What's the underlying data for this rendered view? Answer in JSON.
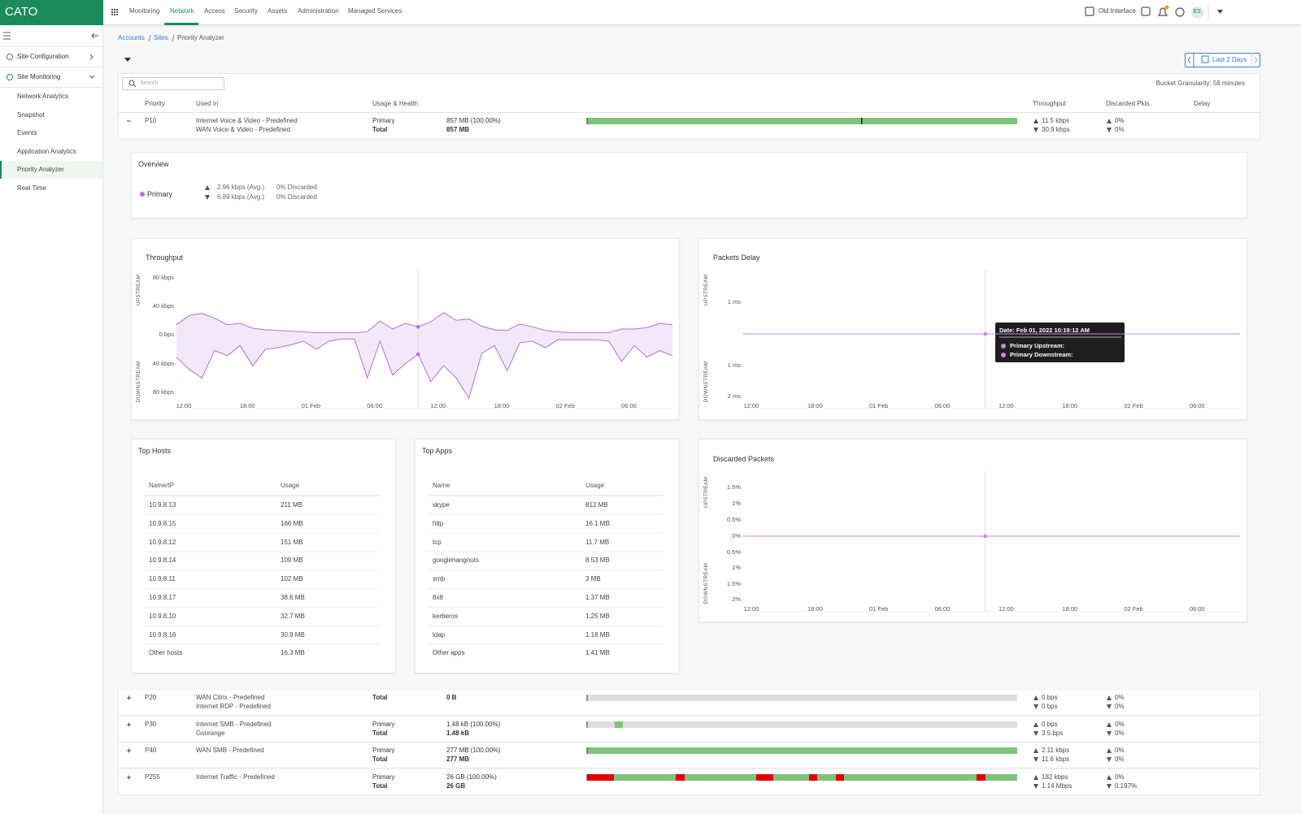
{
  "top_nav": {
    "logo": "CATO",
    "items": [
      "Monitoring",
      "Network",
      "Access",
      "Security",
      "Assets",
      "Administration",
      "Managed Services"
    ],
    "active_item": 1,
    "old_interface": "Old Interface",
    "avatar": "ES"
  },
  "sidebar": {
    "sections": [
      {
        "label": "Site Configuration"
      },
      {
        "label": "Site Monitoring",
        "items": [
          "Network Analytics",
          "Snapshot",
          "Events",
          "Application Analytics",
          "Priority Analyzer",
          "Real Time"
        ]
      }
    ],
    "active_item": 4
  },
  "breadcrumb": [
    "Accounts",
    "Sites",
    "Priority Analyzer"
  ],
  "date_range": "Last 2 Days",
  "search_placeholder": "Search",
  "bucket_granularity": "Bucket Granularity: 58 minutes",
  "table": {
    "columns": [
      "Priority",
      "Used In",
      "Usage & Health",
      "Throughput",
      "Discarded Pkts",
      "Delay"
    ],
    "rows": [
      {
        "priority": "P10",
        "expanded": true,
        "used_in": [
          "Internet Voice & Video - Predefined",
          "WAN Voice & Video - Predefined"
        ],
        "usage": [
          {
            "label": "Primary",
            "value": "857 MB (100.00%)"
          },
          {
            "label": "Total",
            "value": "857 MB"
          }
        ],
        "throughput": [
          "11.5 kbps",
          "30.9 kbps"
        ],
        "discarded": [
          "0%",
          "0%"
        ]
      },
      {
        "priority": "P20",
        "expanded": false,
        "used_in": [
          "WAN Citrix - Predefined",
          "Internet RDP - Predefined"
        ],
        "usage": [
          {
            "label": "Total",
            "value": "0 B"
          }
        ],
        "throughput": [
          "0 bps",
          "0 bps"
        ],
        "discarded": [
          "0%",
          "0%"
        ]
      },
      {
        "priority": "P30",
        "expanded": false,
        "used_in": [
          "Internet SMB - Predefined",
          "Goorange"
        ],
        "usage": [
          {
            "label": "Primary",
            "value": "1.48 kB (100.00%)"
          },
          {
            "label": "Total",
            "value": "1.48 kB"
          }
        ],
        "throughput": [
          "0 bps",
          "3.5 bps"
        ],
        "discarded": [
          "0%",
          "0%"
        ]
      },
      {
        "priority": "P40",
        "expanded": false,
        "used_in": [
          "WAN SMB - Predefined"
        ],
        "usage": [
          {
            "label": "Primary",
            "value": "277 MB (100.00%)"
          },
          {
            "label": "Total",
            "value": "277 MB"
          }
        ],
        "throughput": [
          "2.11 kbps",
          "11.6 kbps"
        ],
        "discarded": [
          "0%",
          "0%"
        ]
      },
      {
        "priority": "P255",
        "expanded": false,
        "used_in": [
          "Internet Traffic - Predefined"
        ],
        "usage": [
          {
            "label": "Primary",
            "value": "26 GB (100.00%)"
          },
          {
            "label": "Total",
            "value": "26 GB"
          }
        ],
        "throughput": [
          "182 kbps",
          "1.14 Mbps"
        ],
        "discarded": [
          "0%",
          "0.197%"
        ]
      }
    ]
  },
  "overview": {
    "title": "Overview",
    "name": "Primary",
    "up": "2.96 kbps (Avg.)",
    "up_discarded": "0% Discarded",
    "down": "6.89 kbps (Avg.)",
    "down_discarded": "0% Discarded"
  },
  "throughput_chart": {
    "type": "area",
    "title": "Throughput",
    "upstream_label": "UPSTREAM",
    "downstream_label": "DOWNSTREAM",
    "x_labels": [
      "12:00",
      "18:00",
      "01 Feb",
      "06:00",
      "12:00",
      "18:00",
      "02 Feb",
      "06:00"
    ],
    "ylim_upstream": [
      0,
      90
    ],
    "ylim_downstream": [
      0,
      90
    ],
    "yticks_upstream": [
      {
        "value": 80,
        "label": "80 kbps"
      },
      {
        "value": 40,
        "label": "40 kbps"
      },
      {
        "value": 0,
        "label": "0 bps"
      }
    ],
    "yticks_downstream": [
      {
        "value": 40,
        "label": "40 kbps"
      },
      {
        "value": 80,
        "label": "80 kbps"
      }
    ],
    "series": [
      {
        "name": "Primary",
        "color": "#b66fd8",
        "upstream": [
          14,
          27,
          30,
          23,
          14,
          16,
          9,
          7,
          6,
          5,
          4,
          3,
          3,
          3,
          3,
          4,
          19,
          8,
          16,
          11,
          18,
          31,
          20,
          22,
          12,
          7,
          6,
          15,
          11,
          6,
          4,
          3,
          3,
          3,
          3,
          8,
          8,
          10,
          16,
          14
        ],
        "downstream": [
          31,
          48,
          60,
          22,
          29,
          15,
          43,
          20,
          18,
          14,
          9,
          20,
          9,
          6,
          6,
          60,
          9,
          56,
          40,
          27,
          65,
          43,
          60,
          88,
          26,
          15,
          50,
          11,
          9,
          18,
          7,
          7,
          7,
          7,
          9,
          37,
          15,
          31,
          22,
          29
        ]
      }
    ]
  },
  "packets_delay_chart": {
    "type": "line",
    "title": "Packets Delay",
    "upstream_label": "UPSTREAM",
    "downstream_label": "DOWNSTREAM",
    "x_labels": [
      "12:00",
      "18:00",
      "01 Feb",
      "06:00",
      "12:00",
      "18:00",
      "02 Feb",
      "06:00"
    ],
    "ylim_upstream": [
      0,
      2
    ],
    "ylim_downstream": [
      0,
      2.1
    ],
    "yticks_upstream": [
      {
        "value": 1,
        "label": "1 ms"
      }
    ],
    "yticks_downstream": [
      {
        "value": 1,
        "label": "1 ms"
      },
      {
        "value": 2,
        "label": "2 ms"
      }
    ],
    "series": [
      {
        "name": "Primary",
        "color": "#c98be0",
        "upstream": [
          0,
          0,
          0,
          0,
          0,
          0,
          0,
          0,
          0,
          0,
          0,
          0,
          0,
          0,
          0,
          0,
          0,
          0,
          0,
          0,
          0,
          0,
          0,
          0,
          0,
          0,
          0,
          0,
          0,
          0,
          0,
          0,
          0,
          0,
          0,
          0,
          0,
          0,
          0,
          0
        ],
        "downstream": [
          0,
          0,
          0,
          0,
          0,
          0,
          0,
          0,
          0,
          0,
          0,
          0,
          0,
          0,
          0,
          0,
          0,
          0,
          0,
          0,
          0,
          0,
          0,
          0,
          0,
          0,
          0,
          0,
          0,
          0,
          0,
          0,
          0,
          0,
          0,
          0,
          0,
          0,
          0,
          0
        ]
      }
    ],
    "tooltip": {
      "date": "Date: Feb 01, 2022 10:19:12 AM",
      "lines": [
        "Primary Upstream:",
        "Primary Downstream:"
      ]
    }
  },
  "discarded_chart": {
    "type": "line",
    "title": "Discarded Packets",
    "upstream_label": "UPSTREAM",
    "downstream_label": "DOWNSTREAM",
    "x_labels": [
      "12:00",
      "18:00",
      "01 Feb",
      "06:00",
      "12:00",
      "18:00",
      "02 Feb",
      "06:00"
    ],
    "ylim_upstream": [
      0,
      2
    ],
    "ylim_downstream": [
      0,
      2.1
    ],
    "yticks_upstream": [
      {
        "value": 1.5,
        "label": "1.5%"
      },
      {
        "value": 1,
        "label": "1%"
      },
      {
        "value": 0.5,
        "label": "0.5%"
      },
      {
        "value": 0,
        "label": "0%"
      }
    ],
    "yticks_downstream": [
      {
        "value": 0.5,
        "label": "0.5%"
      },
      {
        "value": 1,
        "label": "1%"
      },
      {
        "value": 1.5,
        "label": "1.5%"
      },
      {
        "value": 2,
        "label": "2%"
      }
    ],
    "series": [
      {
        "name": "Primary",
        "color": "#c98be0",
        "upstream": [
          0,
          0,
          0,
          0,
          0,
          0,
          0,
          0,
          0,
          0,
          0,
          0,
          0,
          0,
          0,
          0,
          0,
          0,
          0,
          0,
          0,
          0,
          0,
          0,
          0,
          0,
          0,
          0,
          0,
          0,
          0,
          0,
          0,
          0,
          0,
          0,
          0,
          0,
          0,
          0
        ],
        "downstream": [
          0,
          0,
          0,
          0,
          0,
          0,
          0,
          0,
          0,
          0,
          0,
          0,
          0,
          0,
          0,
          0,
          0,
          0,
          0,
          0,
          0,
          0,
          0,
          0,
          0,
          0,
          0,
          0,
          0,
          0,
          0,
          0,
          0,
          0,
          0,
          0,
          0,
          0,
          0,
          0
        ]
      }
    ]
  },
  "top_hosts": {
    "title": "Top Hosts",
    "columns": [
      "Name/IP",
      "Usage"
    ],
    "rows": [
      [
        "10.9.8.13",
        "211 MB"
      ],
      [
        "10.9.8.15",
        "166 MB"
      ],
      [
        "10.9.8.12",
        "151 MB"
      ],
      [
        "10.9.8.14",
        "109 MB"
      ],
      [
        "10.9.8.11",
        "102 MB"
      ],
      [
        "10.9.8.17",
        "38.6 MB"
      ],
      [
        "10.9.8.10",
        "32.7 MB"
      ],
      [
        "10.9.8.16",
        "30.9 MB"
      ],
      [
        "Other hosts",
        "16.3 MB"
      ]
    ]
  },
  "top_apps": {
    "title": "Top Apps",
    "columns": [
      "Name",
      "Usage"
    ],
    "rows": [
      [
        "skype",
        "812 MB"
      ],
      [
        "http",
        "16.1 MB"
      ],
      [
        "tcp",
        "11.7 MB"
      ],
      [
        "googlehangouts",
        "8.53 MB"
      ],
      [
        "smb",
        "3 MB"
      ],
      [
        "8x8",
        "1.37 MB"
      ],
      [
        "kerberos",
        "1.25 MB"
      ],
      [
        "ldap",
        "1.18 MB"
      ],
      [
        "Other apps",
        "1.41 MB"
      ]
    ]
  }
}
